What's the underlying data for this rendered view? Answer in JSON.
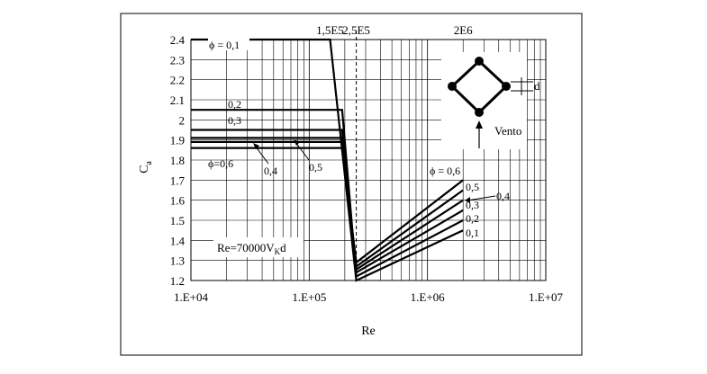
{
  "chart_data": {
    "type": "line",
    "xlabel": "Re",
    "ylabel": "C",
    "ylabel_sub": "a",
    "x_scale": "log",
    "xlim": [
      10000,
      10000000
    ],
    "ylim": [
      1.2,
      2.4
    ],
    "grid": true,
    "x_ticks": [
      {
        "value": 10000,
        "label": "1.E+04"
      },
      {
        "value": 100000,
        "label": "1.E+05"
      },
      {
        "value": 1000000,
        "label": "1.E+06"
      },
      {
        "value": 10000000,
        "label": "1.E+07"
      }
    ],
    "y_ticks": [
      {
        "value": 1.2,
        "label": "1.2"
      },
      {
        "value": 1.3,
        "label": "1.3"
      },
      {
        "value": 1.4,
        "label": "1.4"
      },
      {
        "value": 1.5,
        "label": "1.5"
      },
      {
        "value": 1.6,
        "label": "1.6"
      },
      {
        "value": 1.7,
        "label": "1.7"
      },
      {
        "value": 1.8,
        "label": "1.8"
      },
      {
        "value": 1.9,
        "label": "1.9"
      },
      {
        "value": 2.0,
        "label": "2"
      },
      {
        "value": 2.1,
        "label": "2.1"
      },
      {
        "value": 2.2,
        "label": "2.2"
      },
      {
        "value": 2.3,
        "label": "2.3"
      },
      {
        "value": 2.4,
        "label": "2.4"
      }
    ],
    "top_markers": [
      {
        "value": 150000,
        "label": "1,5E5",
        "dashed": false
      },
      {
        "value": 250000,
        "label": "2,5E5",
        "dashed": true
      },
      {
        "value": 2000000,
        "label": "2E6",
        "dashed": false
      }
    ],
    "series": [
      {
        "name": "0,1",
        "x": [
          10000,
          150000,
          250000,
          2000000
        ],
        "y": [
          2.4,
          2.4,
          1.2,
          1.45
        ]
      },
      {
        "name": "0,2",
        "x": [
          10000,
          190000,
          250000,
          2000000
        ],
        "y": [
          2.05,
          2.05,
          1.22,
          1.5
        ]
      },
      {
        "name": "0,3",
        "x": [
          10000,
          190000,
          250000,
          2000000
        ],
        "y": [
          1.95,
          1.95,
          1.24,
          1.55
        ]
      },
      {
        "name": "0,4",
        "x": [
          10000,
          190000,
          250000,
          2000000
        ],
        "y": [
          1.91,
          1.91,
          1.255,
          1.6
        ]
      },
      {
        "name": "0,5",
        "x": [
          10000,
          190000,
          250000,
          2000000
        ],
        "y": [
          1.89,
          1.89,
          1.27,
          1.65
        ]
      },
      {
        "name": "0,6",
        "x": [
          10000,
          190000,
          250000,
          2000000
        ],
        "y": [
          1.86,
          1.86,
          1.29,
          1.7
        ]
      }
    ],
    "curve_labels": {
      "left": [
        "ϕ = 0,1",
        "0,2",
        "0,3",
        "ϕ=0,6",
        "0,4",
        "0,5"
      ],
      "right": [
        "ϕ = 0,6",
        "0,5",
        "0,4",
        "0,3",
        "0,2",
        "0,1"
      ]
    },
    "annotations": {
      "formula_main": "Re=70000V",
      "formula_sub": "K",
      "formula_tail": "d",
      "wind_label": "Vento",
      "dimension_label": "d"
    }
  }
}
